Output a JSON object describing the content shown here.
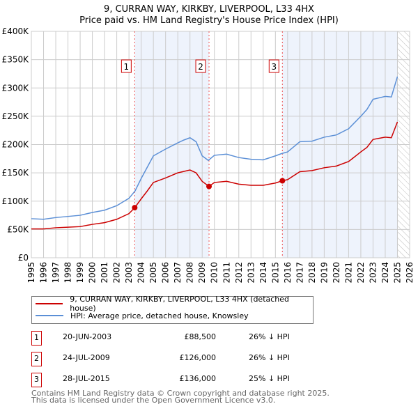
{
  "title": "9, CURRAN WAY, KIRKBY, LIVERPOOL, L33 4HX",
  "subtitle": "Price paid vs. HM Land Registry's House Price Index (HPI)",
  "chart_data": {
    "type": "line",
    "title": "9, CURRAN WAY, KIRKBY, LIVERPOOL, L33 4HX",
    "subtitle": "Price paid vs. HM Land Registry's House Price Index (HPI)",
    "xlim": [
      1995,
      2026
    ],
    "ylim": [
      0,
      400000
    ],
    "x_ticks": [
      "1995",
      "1996",
      "1997",
      "1998",
      "1999",
      "2000",
      "2001",
      "2002",
      "2003",
      "2004",
      "2005",
      "2006",
      "2007",
      "2008",
      "2009",
      "2010",
      "2011",
      "2012",
      "2013",
      "2014",
      "2015",
      "2016",
      "2017",
      "2018",
      "2019",
      "2020",
      "2021",
      "2022",
      "2023",
      "2024",
      "2025",
      "2026"
    ],
    "y_ticks": [
      {
        "v": 0,
        "l": "£0"
      },
      {
        "v": 50000,
        "l": "£50K"
      },
      {
        "v": 100000,
        "l": "£100K"
      },
      {
        "v": 150000,
        "l": "£150K"
      },
      {
        "v": 200000,
        "l": "£200K"
      },
      {
        "v": 250000,
        "l": "£250K"
      },
      {
        "v": 300000,
        "l": "£300K"
      },
      {
        "v": 350000,
        "l": "£350K"
      },
      {
        "v": 400000,
        "l": "£400K"
      }
    ],
    "grid": true,
    "series": [
      {
        "name": "9, CURRAN WAY, KIRKBY, LIVERPOOL, L33 4HX (detached house)",
        "color": "#cc0000",
        "x": [
          1995,
          1996,
          1997,
          1998,
          1999,
          2000,
          2001,
          2002,
          2003,
          2003.47,
          2004,
          2004.5,
          2005,
          2006,
          2007,
          2008,
          2008.5,
          2009,
          2009.56,
          2010,
          2011,
          2012,
          2013,
          2014,
          2015,
          2015.57,
          2016,
          2017,
          2018,
          2019,
          2020,
          2021,
          2022,
          2022.5,
          2023,
          2024,
          2024.5,
          2025
        ],
        "y": [
          51000,
          51000,
          53000,
          54000,
          55000,
          59000,
          62000,
          68000,
          78000,
          88500,
          104000,
          118000,
          133000,
          141000,
          150000,
          155000,
          150000,
          135000,
          126000,
          133000,
          135000,
          130000,
          128000,
          128000,
          132000,
          136000,
          138000,
          152000,
          154000,
          159000,
          162000,
          170000,
          187000,
          195000,
          209000,
          213000,
          212000,
          240000
        ]
      },
      {
        "name": "HPI: Average price, detached house, Knowsley",
        "color": "#5b8fd6",
        "x": [
          1995,
          1996,
          1997,
          1998,
          1999,
          2000,
          2001,
          2002,
          2003,
          2003.5,
          2004,
          2004.5,
          2005,
          2006,
          2007,
          2007.5,
          2008,
          2008.5,
          2009,
          2009.5,
          2010,
          2011,
          2012,
          2013,
          2014,
          2015,
          2015.5,
          2016,
          2017,
          2018,
          2019,
          2020,
          2021,
          2022,
          2022.5,
          2023,
          2024,
          2024.5,
          2025
        ],
        "y": [
          69000,
          68000,
          71000,
          73000,
          75000,
          80000,
          84000,
          92000,
          105000,
          118000,
          140000,
          160000,
          180000,
          192000,
          203000,
          208000,
          212000,
          205000,
          180000,
          172000,
          181000,
          183000,
          177000,
          174000,
          173000,
          180000,
          184000,
          187000,
          205000,
          206000,
          213000,
          217000,
          228000,
          250000,
          262000,
          280000,
          285000,
          284000,
          320000
        ]
      }
    ],
    "sales": [
      {
        "n": "1",
        "x": 2003.47,
        "y": 88500,
        "date": "20-JUN-2003",
        "price": "£88,500",
        "hpi": "26% ↓ HPI"
      },
      {
        "n": "2",
        "x": 2009.56,
        "y": 126000,
        "date": "24-JUL-2009",
        "price": "£126,000",
        "hpi": "26% ↓ HPI"
      },
      {
        "n": "3",
        "x": 2015.57,
        "y": 136000,
        "date": "28-JUL-2015",
        "price": "£136,000",
        "hpi": "25% ↓ HPI"
      }
    ],
    "shaded": [
      [
        2003.47,
        2009.56
      ],
      [
        2015.57,
        2025.0
      ]
    ],
    "hatched_from": 2025.0,
    "legend_position": "below"
  },
  "footer": [
    "Contains HM Land Registry data © Crown copyright and database right 2025.",
    "This data is licensed under the Open Government Licence v3.0."
  ]
}
